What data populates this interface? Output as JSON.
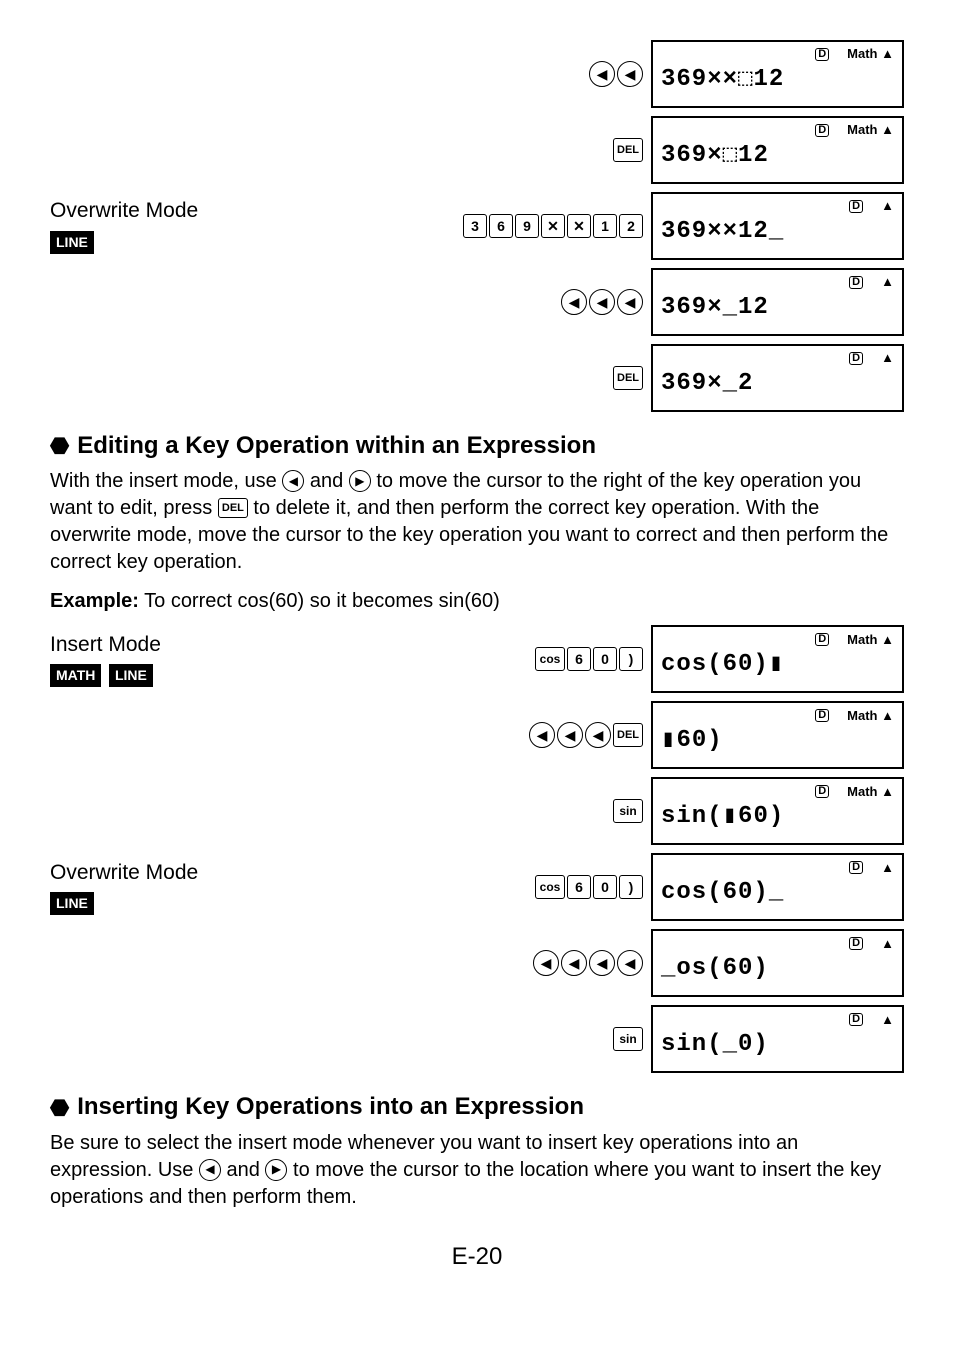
{
  "s1": {
    "text": "369××⬚12",
    "d": true,
    "math": true
  },
  "s2": {
    "text": "369×⬚12",
    "d": true,
    "math": true
  },
  "s3": {
    "text": "369××12_",
    "d": true,
    "math": false
  },
  "s4": {
    "text": "369×_12",
    "d": true,
    "math": false
  },
  "s5": {
    "text": "369×_2",
    "d": true,
    "math": false
  },
  "s6": {
    "text": "cos(60)▮",
    "d": true,
    "math": true
  },
  "s7": {
    "text": "▮60)",
    "d": true,
    "math": true
  },
  "s8": {
    "text": "sin(▮60)",
    "d": true,
    "math": true
  },
  "s9": {
    "text": "cos(60)_",
    "d": true,
    "math": false
  },
  "s10": {
    "text": "_os(60)",
    "d": true,
    "math": false
  },
  "s11": {
    "text": "sin(_0)",
    "d": true,
    "math": false
  },
  "modes": {
    "overwrite": "Overwrite Mode",
    "insert": "Insert Mode",
    "line": "LINE",
    "math": "MATH"
  },
  "h1": "Editing a Key Operation within an Expression",
  "p1a": "With the insert mode, use ",
  "p1b": " and ",
  "p1c": " to move the cursor to the right of the key operation you want to edit, press ",
  "p1d": " to delete it, and then perform the correct key operation. With the overwrite mode, move the cursor to the key operation you want to correct and then perform the correct key operation.",
  "ex1_label": "Example:",
  "ex1_text": " To correct cos(60) so it becomes sin(60)",
  "h2": "Inserting Key Operations into an Expression",
  "p2a": "Be sure to select the insert mode whenever you want to insert key operations into an expression. Use ",
  "p2b": " and ",
  "p2c": " to move the cursor to the location where you want to insert the key operations and then perform them.",
  "page": "E-20",
  "del_label": "DEL",
  "ind": {
    "d": "D",
    "math": "Math",
    "up": "▲"
  },
  "keys": {
    "left": "◀",
    "right": "▶",
    "3": "3",
    "6": "6",
    "9": "9",
    "x": "✕",
    "1": "1",
    "2": "2",
    "0": "0",
    "paren": ")",
    "cos": "cos",
    "sin": "sin"
  }
}
